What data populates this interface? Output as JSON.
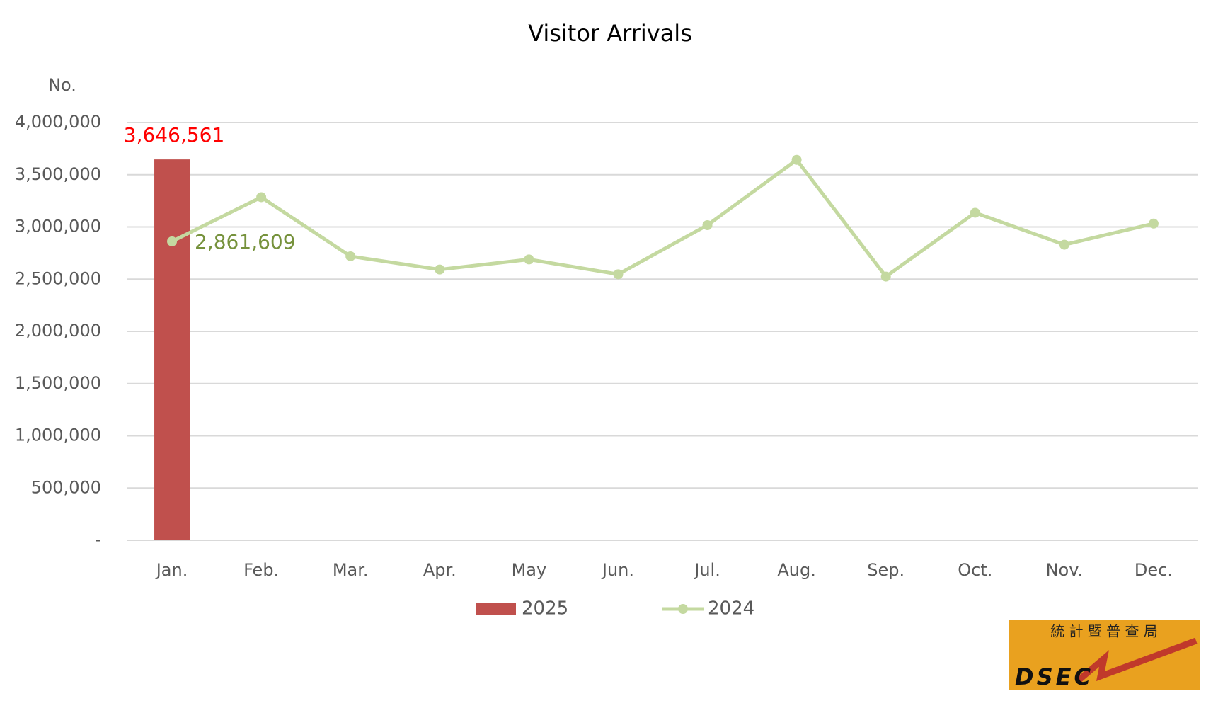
{
  "chart_data": {
    "type": "bar_line",
    "title": "Visitor Arrivals",
    "y_label": "No.",
    "categories": [
      "Jan.",
      "Feb.",
      "Mar.",
      "Apr.",
      "May",
      "Jun.",
      "Jul.",
      "Aug.",
      "Sep.",
      "Oct.",
      "Nov.",
      "Dec."
    ],
    "series": [
      {
        "name": "2025",
        "type": "bar",
        "color": "#c0504d",
        "label_color": "#ff0000",
        "values": [
          3646561,
          null,
          null,
          null,
          null,
          null,
          null,
          null,
          null,
          null,
          null,
          null
        ],
        "value_labels": [
          "3,646,561",
          null,
          null,
          null,
          null,
          null,
          null,
          null,
          null,
          null,
          null,
          null
        ]
      },
      {
        "name": "2024",
        "type": "line",
        "color": "#c4d9a0",
        "label_color": "#76923c",
        "values": [
          2861609,
          3285000,
          2719000,
          2592000,
          2689000,
          2547000,
          3017000,
          3642000,
          2525000,
          3136000,
          2830000,
          3032000
        ],
        "value_labels": [
          "2,861,609",
          null,
          null,
          null,
          null,
          null,
          null,
          null,
          null,
          null,
          null,
          null
        ]
      }
    ],
    "ylim": [
      0,
      4000000
    ],
    "yticks": [
      {
        "value": 0,
        "label": "-"
      },
      {
        "value": 500000,
        "label": "500,000"
      },
      {
        "value": 1000000,
        "label": "1,000,000"
      },
      {
        "value": 1500000,
        "label": "1,500,000"
      },
      {
        "value": 2000000,
        "label": "2,000,000"
      },
      {
        "value": 2500000,
        "label": "2,500,000"
      },
      {
        "value": 3000000,
        "label": "3,000,000"
      },
      {
        "value": 3500000,
        "label": "3,500,000"
      },
      {
        "value": 4000000,
        "label": "4,000,000"
      }
    ],
    "grid": true,
    "legend": "bottom"
  },
  "logo": {
    "chinese": "統 計 暨 普 查 局",
    "text": "DSEC"
  }
}
